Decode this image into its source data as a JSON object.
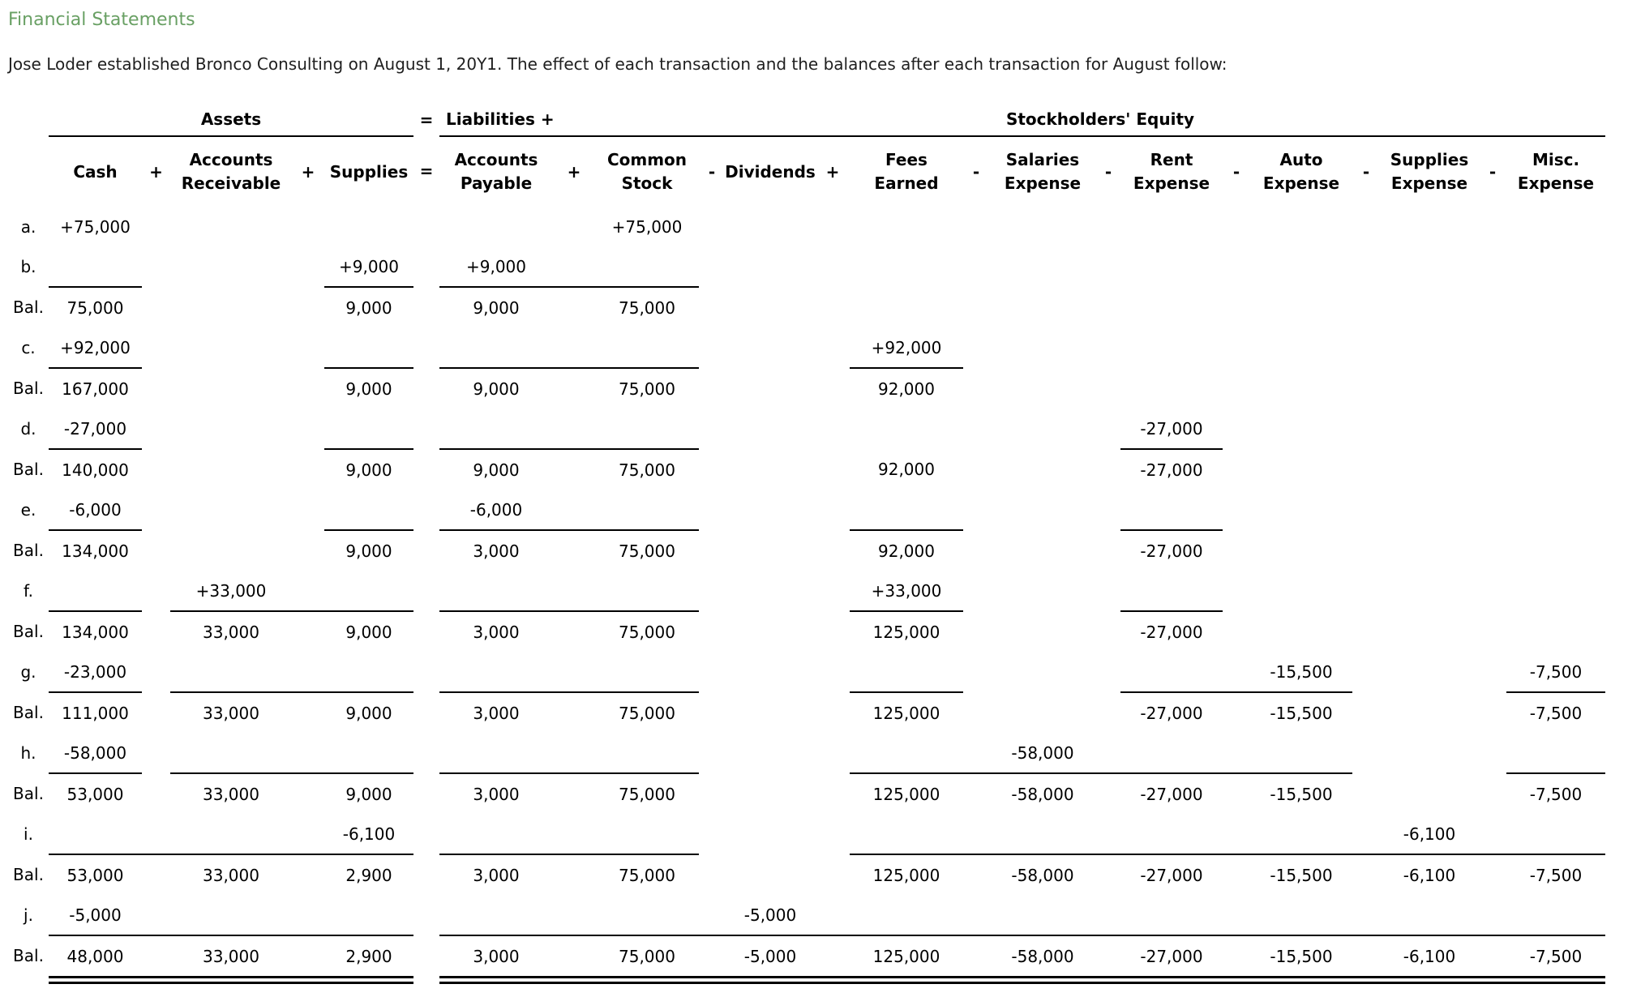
{
  "page": {
    "title": "Financial Statements",
    "intro": "Jose Loder established Bronco Consulting on August 1, 20Y1. The effect of each transaction and the balances after each transaction for August follow:"
  },
  "colors": {
    "title_green": "#69a064",
    "text_black": "#000000"
  },
  "table": {
    "group_headers": [
      {
        "key": "assets",
        "label": "Assets"
      },
      {
        "key": "equals",
        "label": "="
      },
      {
        "key": "liabilities",
        "label": "Liabilities +"
      },
      {
        "key": "equity",
        "label": "Stockholders' Equity"
      }
    ],
    "columns": [
      {
        "key": "cash",
        "label": "Cash"
      },
      {
        "key": "op1",
        "label": "+"
      },
      {
        "key": "ar",
        "label": "Accounts\nReceivable"
      },
      {
        "key": "op2",
        "label": "+"
      },
      {
        "key": "supplies",
        "label": "Supplies"
      },
      {
        "key": "op3",
        "label": "="
      },
      {
        "key": "ap",
        "label": "Accounts\nPayable"
      },
      {
        "key": "op4",
        "label": "+"
      },
      {
        "key": "cs",
        "label": "Common\nStock"
      },
      {
        "key": "op5",
        "label": "-"
      },
      {
        "key": "dividends",
        "label": "Dividends"
      },
      {
        "key": "op6",
        "label": "+"
      },
      {
        "key": "fees",
        "label": "Fees\nEarned"
      },
      {
        "key": "op7",
        "label": "-"
      },
      {
        "key": "salaries",
        "label": "Salaries\nExpense"
      },
      {
        "key": "op8",
        "label": "-"
      },
      {
        "key": "rent",
        "label": "Rent\nExpense"
      },
      {
        "key": "op9",
        "label": "-"
      },
      {
        "key": "auto",
        "label": "Auto\nExpense"
      },
      {
        "key": "op10",
        "label": "-"
      },
      {
        "key": "supplies_exp",
        "label": "Supplies\nExpense"
      },
      {
        "key": "op11",
        "label": "-"
      },
      {
        "key": "misc",
        "label": "Misc.\nExpense"
      }
    ],
    "rows": [
      {
        "type": "txn",
        "label": "a.",
        "values": {
          "cash": "+75,000",
          "cs": "+75,000"
        },
        "underline": []
      },
      {
        "type": "txn",
        "label": "b.",
        "values": {
          "supplies": "+9,000",
          "ap": "+9,000"
        },
        "underline": [
          "cash",
          "supplies",
          "ap",
          "op4",
          "cs"
        ]
      },
      {
        "type": "bal",
        "label": "Bal.",
        "values": {
          "cash": "75,000",
          "supplies": "9,000",
          "ap": "9,000",
          "cs": "75,000"
        }
      },
      {
        "type": "txn",
        "label": "c.",
        "values": {
          "cash": "+92,000",
          "fees": "+92,000"
        },
        "underline": [
          "cash",
          "supplies",
          "ap",
          "op4",
          "cs",
          "fees"
        ]
      },
      {
        "type": "bal",
        "label": "Bal.",
        "values": {
          "cash": "167,000",
          "supplies": "9,000",
          "ap": "9,000",
          "cs": "75,000",
          "fees": "92,000"
        }
      },
      {
        "type": "txn",
        "label": "d.",
        "values": {
          "cash": "-27,000",
          "rent": "-27,000"
        },
        "underline": [
          "cash",
          "supplies",
          "ap",
          "op4",
          "cs",
          "rent"
        ]
      },
      {
        "type": "bal",
        "label": "Bal.",
        "values": {
          "cash": "140,000",
          "supplies": "9,000",
          "ap": "9,000",
          "cs": "75,000",
          "fees": "92,000",
          "rent": "-27,000"
        }
      },
      {
        "type": "txn",
        "label": "e.",
        "values": {
          "cash": "-6,000",
          "ap": "-6,000"
        },
        "underline": [
          "cash",
          "supplies",
          "ap",
          "op4",
          "cs",
          "fees",
          "rent"
        ]
      },
      {
        "type": "bal",
        "label": "Bal.",
        "values": {
          "cash": "134,000",
          "supplies": "9,000",
          "ap": "3,000",
          "cs": "75,000",
          "fees": "92,000",
          "rent": "-27,000"
        }
      },
      {
        "type": "txn",
        "label": "f.",
        "values": {
          "ar": "+33,000",
          "fees": "+33,000"
        },
        "underline": [
          "cash",
          "ar",
          "op2",
          "supplies",
          "ap",
          "op4",
          "cs",
          "fees",
          "rent"
        ]
      },
      {
        "type": "bal",
        "label": "Bal.",
        "values": {
          "cash": "134,000",
          "ar": "33,000",
          "supplies": "9,000",
          "ap": "3,000",
          "cs": "75,000",
          "fees": "125,000",
          "rent": "-27,000"
        }
      },
      {
        "type": "txn",
        "label": "g.",
        "values": {
          "cash": "-23,000",
          "auto": "-15,500",
          "misc": "-7,500"
        },
        "underline": [
          "cash",
          "ar",
          "op2",
          "supplies",
          "ap",
          "op4",
          "cs",
          "fees",
          "rent",
          "op9",
          "auto",
          "misc"
        ]
      },
      {
        "type": "bal",
        "label": "Bal.",
        "values": {
          "cash": "111,000",
          "ar": "33,000",
          "supplies": "9,000",
          "ap": "3,000",
          "cs": "75,000",
          "fees": "125,000",
          "rent": "-27,000",
          "auto": "-15,500",
          "misc": "-7,500"
        }
      },
      {
        "type": "txn",
        "label": "h.",
        "values": {
          "cash": "-58,000",
          "salaries": "-58,000"
        },
        "underline": [
          "cash",
          "ar",
          "op2",
          "supplies",
          "ap",
          "op4",
          "cs",
          "fees",
          "op7",
          "salaries",
          "op8",
          "rent",
          "op9",
          "auto",
          "misc"
        ]
      },
      {
        "type": "bal",
        "label": "Bal.",
        "values": {
          "cash": "53,000",
          "ar": "33,000",
          "supplies": "9,000",
          "ap": "3,000",
          "cs": "75,000",
          "fees": "125,000",
          "salaries": "-58,000",
          "rent": "-27,000",
          "auto": "-15,500",
          "misc": "-7,500"
        }
      },
      {
        "type": "txn",
        "label": "i.",
        "values": {
          "supplies": "-6,100",
          "supplies_exp": "-6,100"
        },
        "underline": [
          "cash",
          "op1",
          "ar",
          "op2",
          "supplies",
          "ap",
          "op4",
          "cs",
          "fees",
          "op7",
          "salaries",
          "op8",
          "rent",
          "op9",
          "auto",
          "op10",
          "supplies_exp",
          "op11",
          "misc"
        ]
      },
      {
        "type": "bal",
        "label": "Bal.",
        "values": {
          "cash": "53,000",
          "ar": "33,000",
          "supplies": "2,900",
          "ap": "3,000",
          "cs": "75,000",
          "fees": "125,000",
          "salaries": "-58,000",
          "rent": "-27,000",
          "auto": "-15,500",
          "supplies_exp": "-6,100",
          "misc": "-7,500"
        }
      },
      {
        "type": "txn",
        "label": "j.",
        "values": {
          "cash": "-5,000",
          "dividends": "-5,000"
        },
        "underline": [
          "cash",
          "op1",
          "ar",
          "op2",
          "supplies",
          "ap",
          "op4",
          "cs",
          "op5",
          "dividends",
          "op6",
          "fees",
          "op7",
          "salaries",
          "op8",
          "rent",
          "op9",
          "auto",
          "op10",
          "supplies_exp",
          "op11",
          "misc"
        ]
      },
      {
        "type": "bal",
        "label": "Bal.",
        "values": {
          "cash": "48,000",
          "ar": "33,000",
          "supplies": "2,900",
          "ap": "3,000",
          "cs": "75,000",
          "dividends": "-5,000",
          "fees": "125,000",
          "salaries": "-58,000",
          "rent": "-27,000",
          "auto": "-15,500",
          "supplies_exp": "-6,100",
          "misc": "-7,500"
        }
      },
      {
        "type": "rule2"
      }
    ]
  }
}
